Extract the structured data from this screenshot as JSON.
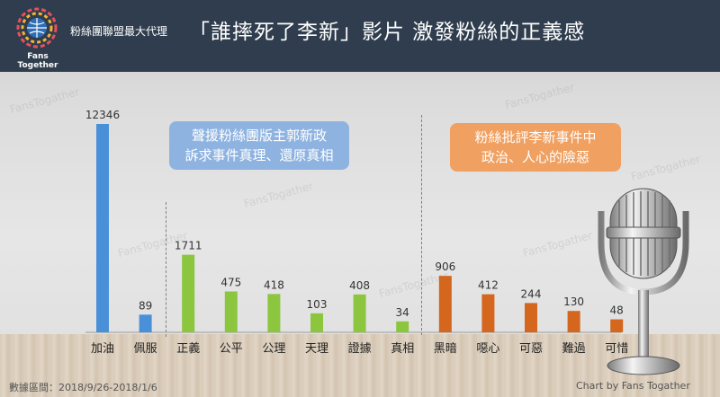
{
  "header": {
    "org_name": "粉絲團聯盟最大代理",
    "logo_text": "Fans Together",
    "title": "「誰摔死了李新」影片 激發粉絲的正義感"
  },
  "callouts": {
    "blue_line1": "聲援粉絲團版主郭新政",
    "blue_line2": "訴求事件真理、還原真相",
    "orange_line1": "粉絲批評李新事件中",
    "orange_line2": "政治、人心的險惡"
  },
  "watermark": "FansTogather",
  "footer": {
    "date_range": "數據區間：2018/9/26-2018/1/6",
    "credit": "Chart by Fans Togather"
  },
  "chart_data": {
    "type": "bar",
    "title": "",
    "xlabel": "",
    "ylabel": "",
    "ylim": [
      0,
      12346
    ],
    "grid": false,
    "categories": [
      "加油",
      "佩服",
      "正義",
      "公平",
      "公理",
      "天理",
      "證據",
      "真相",
      "黑暗",
      "噁心",
      "可惡",
      "難過",
      "可惜"
    ],
    "values": [
      12346,
      89,
      1711,
      475,
      418,
      103,
      408,
      34,
      906,
      412,
      244,
      130,
      48
    ],
    "labels": [
      "12346",
      "89",
      "1711",
      "475",
      "418",
      "103",
      "408",
      "34",
      "906",
      "412",
      "244",
      "130",
      "48"
    ],
    "colors": [
      "#4a90d9",
      "#4a90d9",
      "#8cc63f",
      "#8cc63f",
      "#8cc63f",
      "#8cc63f",
      "#8cc63f",
      "#8cc63f",
      "#d4661e",
      "#d4661e",
      "#d4661e",
      "#d4661e",
      "#d4661e"
    ]
  }
}
